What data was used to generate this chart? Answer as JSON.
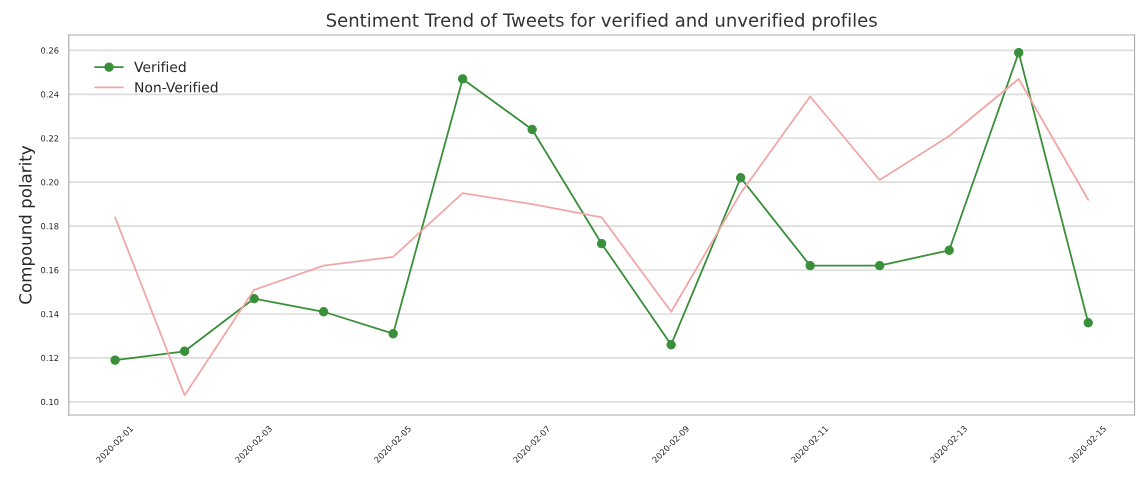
{
  "chart_data": {
    "type": "line",
    "title": "Sentiment Trend of Tweets for verified and unverified profiles",
    "ylabel": "Compound polarity",
    "x": [
      "2020-02-01",
      "2020-02-02",
      "2020-02-03",
      "2020-02-04",
      "2020-02-05",
      "2020-02-06",
      "2020-02-07",
      "2020-02-08",
      "2020-02-09",
      "2020-02-10",
      "2020-02-11",
      "2020-02-12",
      "2020-02-13",
      "2020-02-14",
      "2020-02-15"
    ],
    "series": [
      {
        "name": "Verified",
        "color": "#3a8f3a",
        "marker": "circle",
        "values": [
          0.119,
          0.123,
          0.147,
          0.141,
          0.131,
          0.247,
          0.224,
          0.172,
          0.126,
          0.202,
          0.162,
          0.162,
          0.169,
          0.259,
          0.136
        ]
      },
      {
        "name": "Non-Verified",
        "color": "#f2a7a7",
        "marker": "none",
        "values": [
          0.184,
          0.103,
          0.151,
          0.162,
          0.166,
          0.195,
          0.19,
          0.184,
          0.141,
          0.195,
          0.239,
          0.201,
          0.221,
          0.247,
          0.192
        ]
      }
    ],
    "xlim": [
      "2020-01-31T08:00",
      "2020-02-15T16:00"
    ],
    "xticks": [
      "2020-02-01",
      "2020-02-03",
      "2020-02-05",
      "2020-02-07",
      "2020-02-09",
      "2020-02-11",
      "2020-02-13",
      "2020-02-15"
    ],
    "ylim": [
      0.094,
      0.267
    ],
    "yticks": [
      {
        "value": 0.1,
        "label": "0.10"
      },
      {
        "value": 0.12,
        "label": "0.12"
      },
      {
        "value": 0.14,
        "label": "0.14"
      },
      {
        "value": 0.16,
        "label": "0.16"
      },
      {
        "value": 0.18,
        "label": "0.18"
      },
      {
        "value": 0.2,
        "label": "0.20"
      },
      {
        "value": 0.22,
        "label": "0.22"
      },
      {
        "value": 0.24,
        "label": "0.24"
      },
      {
        "value": 0.26,
        "label": "0.26"
      }
    ],
    "grid": "y",
    "legend": "top left"
  }
}
